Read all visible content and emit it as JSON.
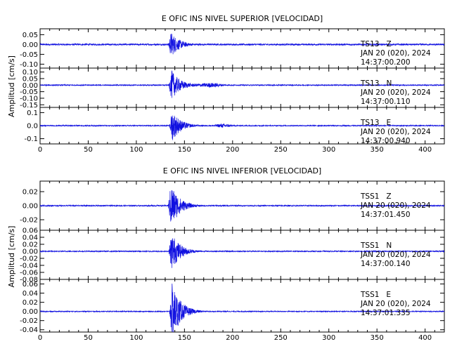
{
  "colors": {
    "trace": "#1010e0",
    "axis": "#000000",
    "background": "#ffffff"
  },
  "chart_data": [
    {
      "type": "line",
      "title": "E OFIC INS NIVEL SUPERIOR [VELOCIDAD]",
      "ylabel": "Amplitud [cm/s]",
      "x_ticks": [
        "0",
        "50",
        "100",
        "150",
        "200",
        "250",
        "300",
        "350",
        "400"
      ],
      "xlim": [
        0,
        420
      ],
      "panels": [
        {
          "component": "Z",
          "station_label": "TS13   Z",
          "date": "JAN 20 (020), 2024",
          "time": "14:37:00.200",
          "ylim": [
            -0.12,
            0.08
          ],
          "yticks": [
            0.05,
            0.0,
            -0.05,
            -0.1
          ],
          "ytick_labels": [
            "0.05",
            "0.00",
            "-0.05",
            "-0.10"
          ],
          "peak": 0.065,
          "coda": 0.12,
          "noise": 0.004
        },
        {
          "component": "N",
          "station_label": "TS13   N",
          "date": "JAN 20 (020), 2024",
          "time": "14:37:00.110",
          "ylim": [
            -0.17,
            0.13
          ],
          "yticks": [
            0.1,
            0.05,
            0.0,
            -0.05,
            -0.1,
            -0.15
          ],
          "ytick_labels": [
            "0.10",
            "0.05",
            "0.00",
            "-0.05",
            "-0.10",
            "-0.15"
          ],
          "peak": 0.115,
          "coda": 0.22,
          "noise": 0.004
        },
        {
          "component": "E",
          "station_label": "TS13   E",
          "date": "JAN 20 (020), 2024",
          "time": "14:37:00.940",
          "ylim": [
            -0.14,
            0.14
          ],
          "yticks": [
            0.1,
            0.0,
            -0.1
          ],
          "ytick_labels": [
            "0.1",
            "0.0",
            "-0.1"
          ],
          "peak": 0.12,
          "coda": 0.2,
          "noise": 0.004
        }
      ]
    },
    {
      "type": "line",
      "title": "E OFIC INS NIVEL INFERIOR [VELOCIDAD]",
      "ylabel": "Amplitud [cm/s]",
      "x_ticks": [
        "0",
        "50",
        "100",
        "150",
        "200",
        "250",
        "300",
        "350",
        "400"
      ],
      "xlim": [
        0,
        420
      ],
      "panels": [
        {
          "component": "Z",
          "station_label": "TSS1   Z",
          "date": "JAN 20 (020), 2024",
          "time": "14:37:01.450",
          "ylim": [
            -0.035,
            0.035
          ],
          "yticks": [
            0.02,
            0.0,
            -0.02
          ],
          "ytick_labels": [
            "0.02",
            "0.00",
            "-0.02"
          ],
          "peak": 0.032,
          "coda": 0.07,
          "noise": 0.0008
        },
        {
          "component": "N",
          "station_label": "TSS1   N",
          "date": "JAN 20 (020), 2024",
          "time": "14:37:00.140",
          "ylim": [
            -0.08,
            0.06
          ],
          "yticks": [
            0.06,
            0.04,
            0.02,
            0.0,
            -0.02,
            -0.04,
            -0.06,
            -0.08
          ],
          "ytick_labels": [
            "0.06",
            "0.04",
            "0.02",
            "0.00",
            "-0.02",
            "-0.04",
            "-0.06",
            "-0.08"
          ],
          "peak": 0.055,
          "coda": 0.07,
          "noise": 0.0015
        },
        {
          "component": "E",
          "station_label": "TSS1   E",
          "date": "JAN 20 (020), 2024",
          "time": "14:37:01.335",
          "ylim": [
            -0.045,
            0.07
          ],
          "yticks": [
            0.06,
            0.04,
            0.02,
            0.0,
            -0.02,
            -0.04
          ],
          "ytick_labels": [
            "0.06",
            "0.04",
            "0.02",
            "0.00",
            "-0.02",
            "-0.04"
          ],
          "peak": 0.062,
          "coda": 0.07,
          "noise": 0.001
        }
      ]
    }
  ]
}
